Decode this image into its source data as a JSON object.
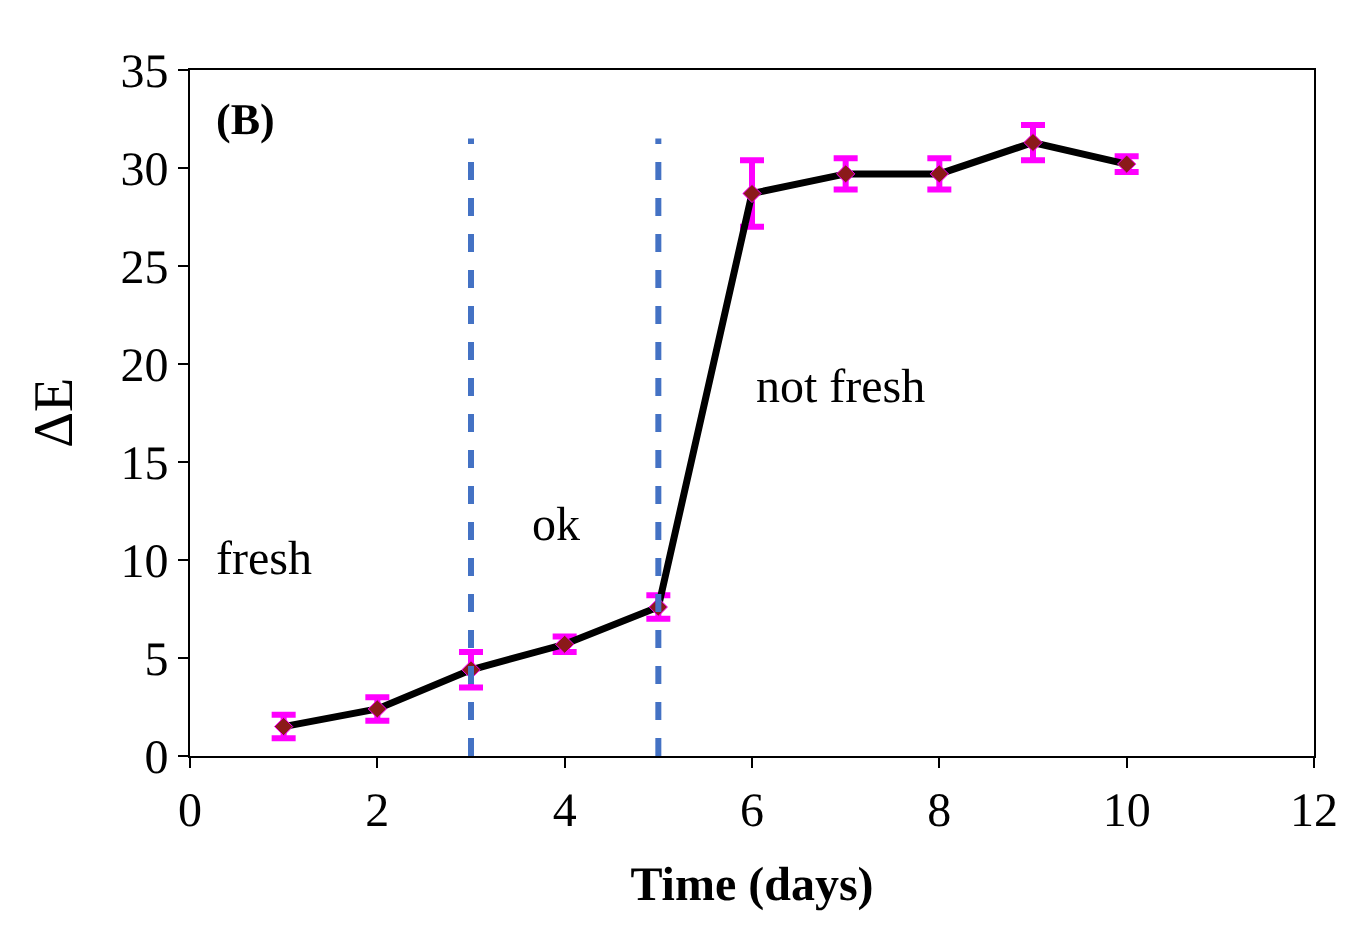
{
  "chart_data": {
    "type": "line",
    "xlabel": "Time (days)",
    "ylabel": "ΔE",
    "x": [
      1,
      2,
      3,
      4,
      5,
      6,
      7,
      8,
      9,
      10
    ],
    "series": [
      {
        "color": "#000000",
        "values": [
          1.5,
          2.4,
          4.4,
          5.7,
          7.6,
          28.7,
          29.7,
          29.7,
          31.3,
          30.2
        ],
        "errors": [
          0.6,
          0.6,
          0.9,
          0.4,
          0.6,
          1.7,
          0.8,
          0.8,
          0.9,
          0.4
        ]
      }
    ],
    "xlim": [
      0,
      12
    ],
    "xticks": [
      0,
      2,
      4,
      6,
      8,
      10,
      12
    ],
    "ylim": [
      0,
      35
    ],
    "yticks": [
      0,
      5,
      10,
      15,
      20,
      25,
      30,
      35
    ],
    "marker": "diamond",
    "line_style": "solid",
    "ref_lines": [
      {
        "axis": "x",
        "value": 3,
        "color": "#4472c4",
        "line_style": "dashed"
      },
      {
        "axis": "x",
        "value": 5,
        "color": "#4472c4",
        "line_style": "dashed"
      }
    ],
    "annotations": [
      "(B)",
      "fresh",
      "ok",
      "not fresh"
    ]
  }
}
